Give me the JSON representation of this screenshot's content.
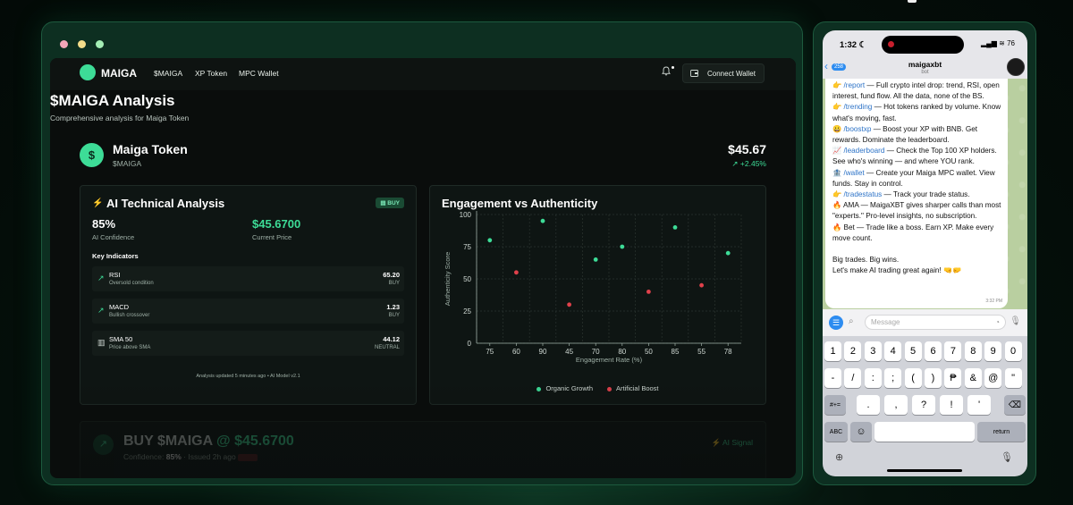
{
  "colors": {
    "accent": "#3ddc97",
    "sell": "#e0414b",
    "background": "#0a0d0c"
  },
  "nav": {
    "logo": "MAIGA",
    "links": [
      "$MAIGA",
      "XP Token",
      "MPC Wallet"
    ],
    "connect_label": "Connect Wallet",
    "bell_icon": "bell-icon",
    "wallet_icon": "wallet-icon"
  },
  "page": {
    "title": "$MAIGA Analysis",
    "subtitle": "Comprehensive analysis for Maiga Token"
  },
  "token": {
    "icon": "$",
    "name": "Maiga Token",
    "symbol": "$MAIGA",
    "price": "$45.67",
    "change": "+2.45%"
  },
  "ai": {
    "title": "AI Technical Analysis",
    "badge": "BUY",
    "confidence": "85%",
    "confidence_label": "AI Confidence",
    "price": "$45.6700",
    "price_label": "Current Price",
    "indicators_title": "Key Indicators",
    "indicators": [
      {
        "name": "RSI",
        "desc": "Oversold condition",
        "value": "65.20",
        "signal": "BUY"
      },
      {
        "name": "MACD",
        "desc": "Bullish crossover",
        "value": "1.23",
        "signal": "BUY"
      },
      {
        "name": "SMA 50",
        "desc": "Price above SMA",
        "value": "44.12",
        "signal": "NEUTRAL"
      }
    ],
    "footnote": "Analysis updated 5 minutes ago • AI Model v2.1"
  },
  "chart_data": {
    "type": "scatter",
    "title": "Engagement vs Authenticity",
    "xlabel": "Engagement Rate (%)",
    "ylabel": "Authenticity Score",
    "categories": [
      "75",
      "60",
      "90",
      "45",
      "70",
      "80",
      "50",
      "85",
      "55",
      "78"
    ],
    "ylim": [
      0,
      100
    ],
    "yticks": [
      0,
      25,
      50,
      75,
      100
    ],
    "grid": true,
    "legend": "bottom",
    "series": [
      {
        "name": "Organic Growth",
        "color": "#3ddc97",
        "points": [
          {
            "x": "75",
            "y": 80
          },
          {
            "x": "90",
            "y": 95
          },
          {
            "x": "70",
            "y": 65
          },
          {
            "x": "80",
            "y": 75
          },
          {
            "x": "85",
            "y": 90
          },
          {
            "x": "78",
            "y": 70
          }
        ]
      },
      {
        "name": "Artificial Boost",
        "color": "#e0414b",
        "points": [
          {
            "x": "60",
            "y": 55
          },
          {
            "x": "45",
            "y": 30
          },
          {
            "x": "50",
            "y": 40
          },
          {
            "x": "55",
            "y": 45
          }
        ]
      }
    ]
  },
  "signal": {
    "title_prefix": "BUY $MAIGA",
    "title_suffix": "@ $45.6700",
    "confidence_label": "Confidence:",
    "confidence": "85%",
    "issued": "· Issued 2h ago",
    "tag": "AI Signal"
  },
  "phone": {
    "time": "1:32",
    "status_right": "▂▄▆ ≋ 76",
    "back_count": "258",
    "bot_name": "maigaxbt",
    "bot_sub": "bot",
    "message_lines": [
      {
        "icon": "👉",
        "cmd": "/report",
        "text": " — Full crypto intel drop: trend, RSI, open interest, fund flow. All the data, none of the BS."
      },
      {
        "icon": "👉",
        "cmd": "/trending",
        "text": " — Hot tokens ranked by volume. Know what's moving, fast."
      },
      {
        "icon": "😀",
        "cmd": "/boostxp",
        "text": " — Boost your XP with BNB. Get rewards. Dominate the leaderboard."
      },
      {
        "icon": "📈",
        "cmd": "/leaderboard",
        "text": " — Check the Top 100 XP holders. See who's winning — and where YOU rank."
      },
      {
        "icon": "🏦",
        "cmd": "/wallet",
        "text": " — Create your Maiga MPC wallet. View funds. Stay in control."
      },
      {
        "icon": "👉",
        "cmd": "/tradestatus",
        "text": " — Track your trade status."
      },
      {
        "icon": "🔥",
        "cmd": "",
        "text": "AMA — MaigaXBT gives sharper calls than most \"experts.\" Pro-level insights, no subscription."
      },
      {
        "icon": "🔥",
        "cmd": "",
        "text": "Bet — Trade like a boss. Earn XP. Make every move count."
      }
    ],
    "closing1": "Big trades. Big wins.",
    "closing2": "Let's make AI trading great again! 🤜🤛",
    "msg_time": "3:32 PM",
    "input_placeholder": "Message",
    "keyboard": {
      "row1": [
        "1",
        "2",
        "3",
        "4",
        "5",
        "6",
        "7",
        "8",
        "9",
        "0"
      ],
      "row2": [
        "-",
        "/",
        ":",
        ";",
        "(",
        ")",
        "₱",
        "&",
        "@",
        "\""
      ],
      "row3_left": "#+=",
      "row3": [
        ".",
        ",",
        "?",
        "!",
        "'"
      ],
      "row4_abc": "ABC",
      "row4_return": "return"
    }
  }
}
